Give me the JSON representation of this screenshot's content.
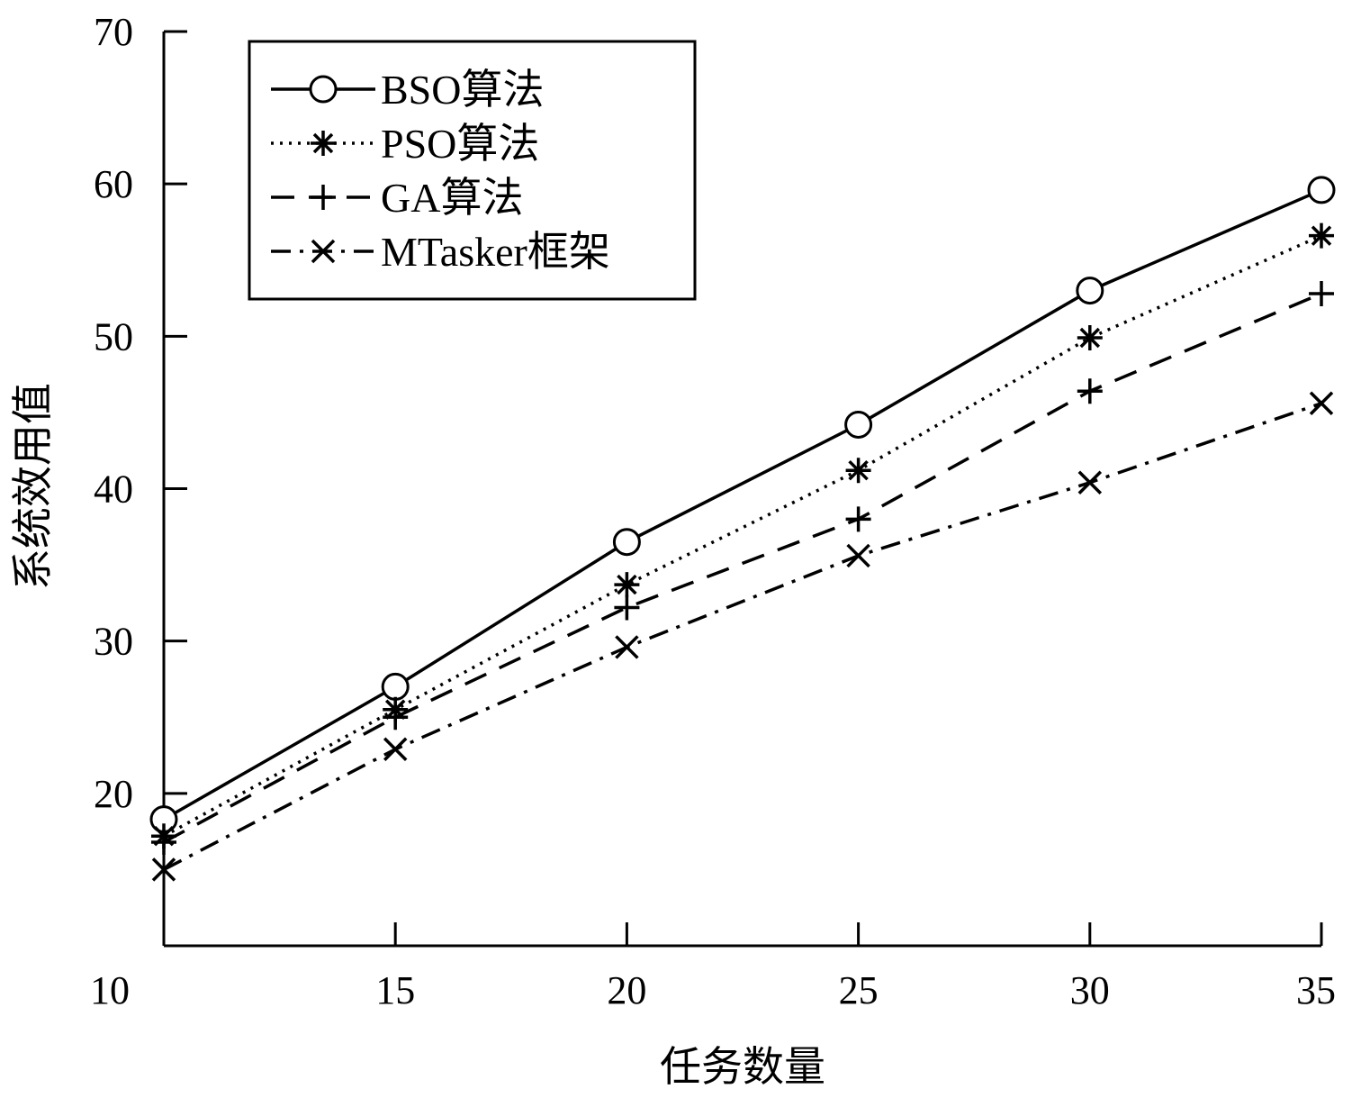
{
  "chart_data": {
    "type": "line",
    "xlabel": "任务数量",
    "ylabel": "系统效用值",
    "x": [
      10,
      15,
      20,
      25,
      30,
      35
    ],
    "xticks": [
      10,
      15,
      20,
      25,
      30,
      35
    ],
    "yticks": [
      20,
      30,
      40,
      50,
      60,
      70
    ],
    "xlim": [
      10,
      35
    ],
    "ylim": [
      10,
      70
    ],
    "grid": false,
    "legend_position": "top-left",
    "series": [
      {
        "name": "BSO算法",
        "marker": "circle",
        "line": "solid",
        "values": [
          18.3,
          27.0,
          36.5,
          44.2,
          53.0,
          59.6
        ]
      },
      {
        "name": "PSO算法",
        "marker": "asterisk",
        "line": "dotted",
        "values": [
          17.2,
          25.5,
          33.7,
          41.2,
          49.9,
          56.6
        ]
      },
      {
        "name": "GA算法",
        "marker": "plus",
        "line": "dashed",
        "values": [
          16.8,
          25.0,
          32.2,
          38.0,
          46.4,
          52.8
        ]
      },
      {
        "name": "MTasker框架",
        "marker": "x",
        "line": "dashdot",
        "values": [
          15.0,
          22.9,
          29.6,
          35.6,
          40.4,
          45.6
        ]
      }
    ]
  }
}
